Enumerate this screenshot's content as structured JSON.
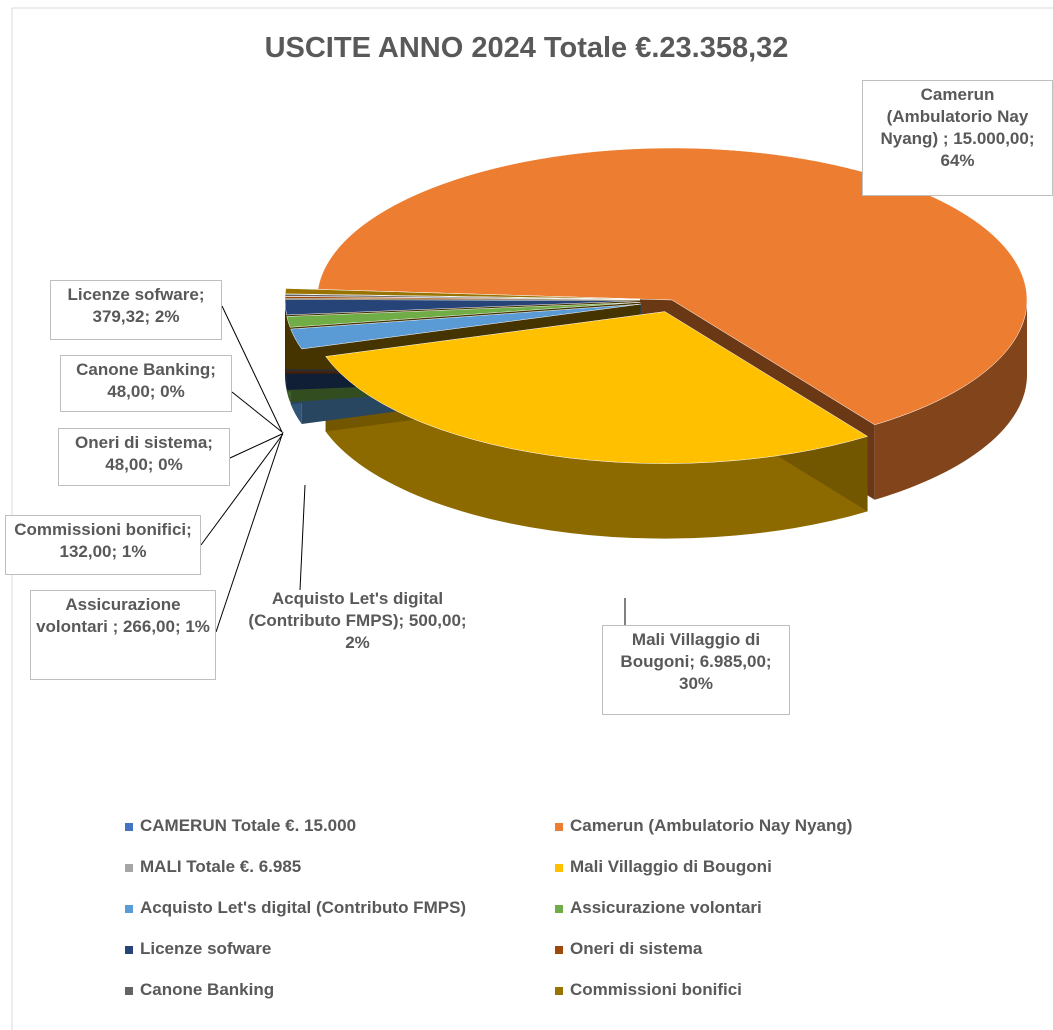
{
  "chart_data": {
    "type": "pie3d",
    "title": "USCITE ANNO 2024 Totale €.23.358,32",
    "categories": [
      "CAMERUN Totale €. 15.000",
      "Camerun (Ambulatorio Nay Nyang)",
      "MALI Totale €. 6.985",
      "Mali Villaggio di Bougoni",
      "Acquisto Let's digital (Contributo FMPS)",
      "Assicurazione volontari",
      "Licenze sofware",
      "Oneri di sistema",
      "Canone Banking",
      "Commissioni bonifici"
    ],
    "values": [
      null,
      15000,
      null,
      6985,
      500,
      266,
      379.32,
      48,
      48,
      132
    ],
    "value_labels": [
      null,
      "Camerun (Ambulatorio Nay Nyang) ; 15.000,00; 64%",
      null,
      "Mali Villaggio di Bougoni; 6.985,00; 30%",
      "Acquisto Let's digital (Contributo FMPS); 500,00; 2%",
      "Assicurazione volontari ; 266,00; 1%",
      "Licenze sofware; 379,32; 2%",
      "Oneri di sistema; 48,00; 0%",
      "Canone Banking; 48,00; 0%",
      "Commissioni bonifici; 132,00; 1%"
    ],
    "colors": [
      "#4472c4",
      "#ed7d31",
      "#a5a5a5",
      "#ffc000",
      "#5b9bd5",
      "#70ad47",
      "#264478",
      "#9e480e",
      "#636363",
      "#997300"
    ],
    "legend": "bottom"
  }
}
